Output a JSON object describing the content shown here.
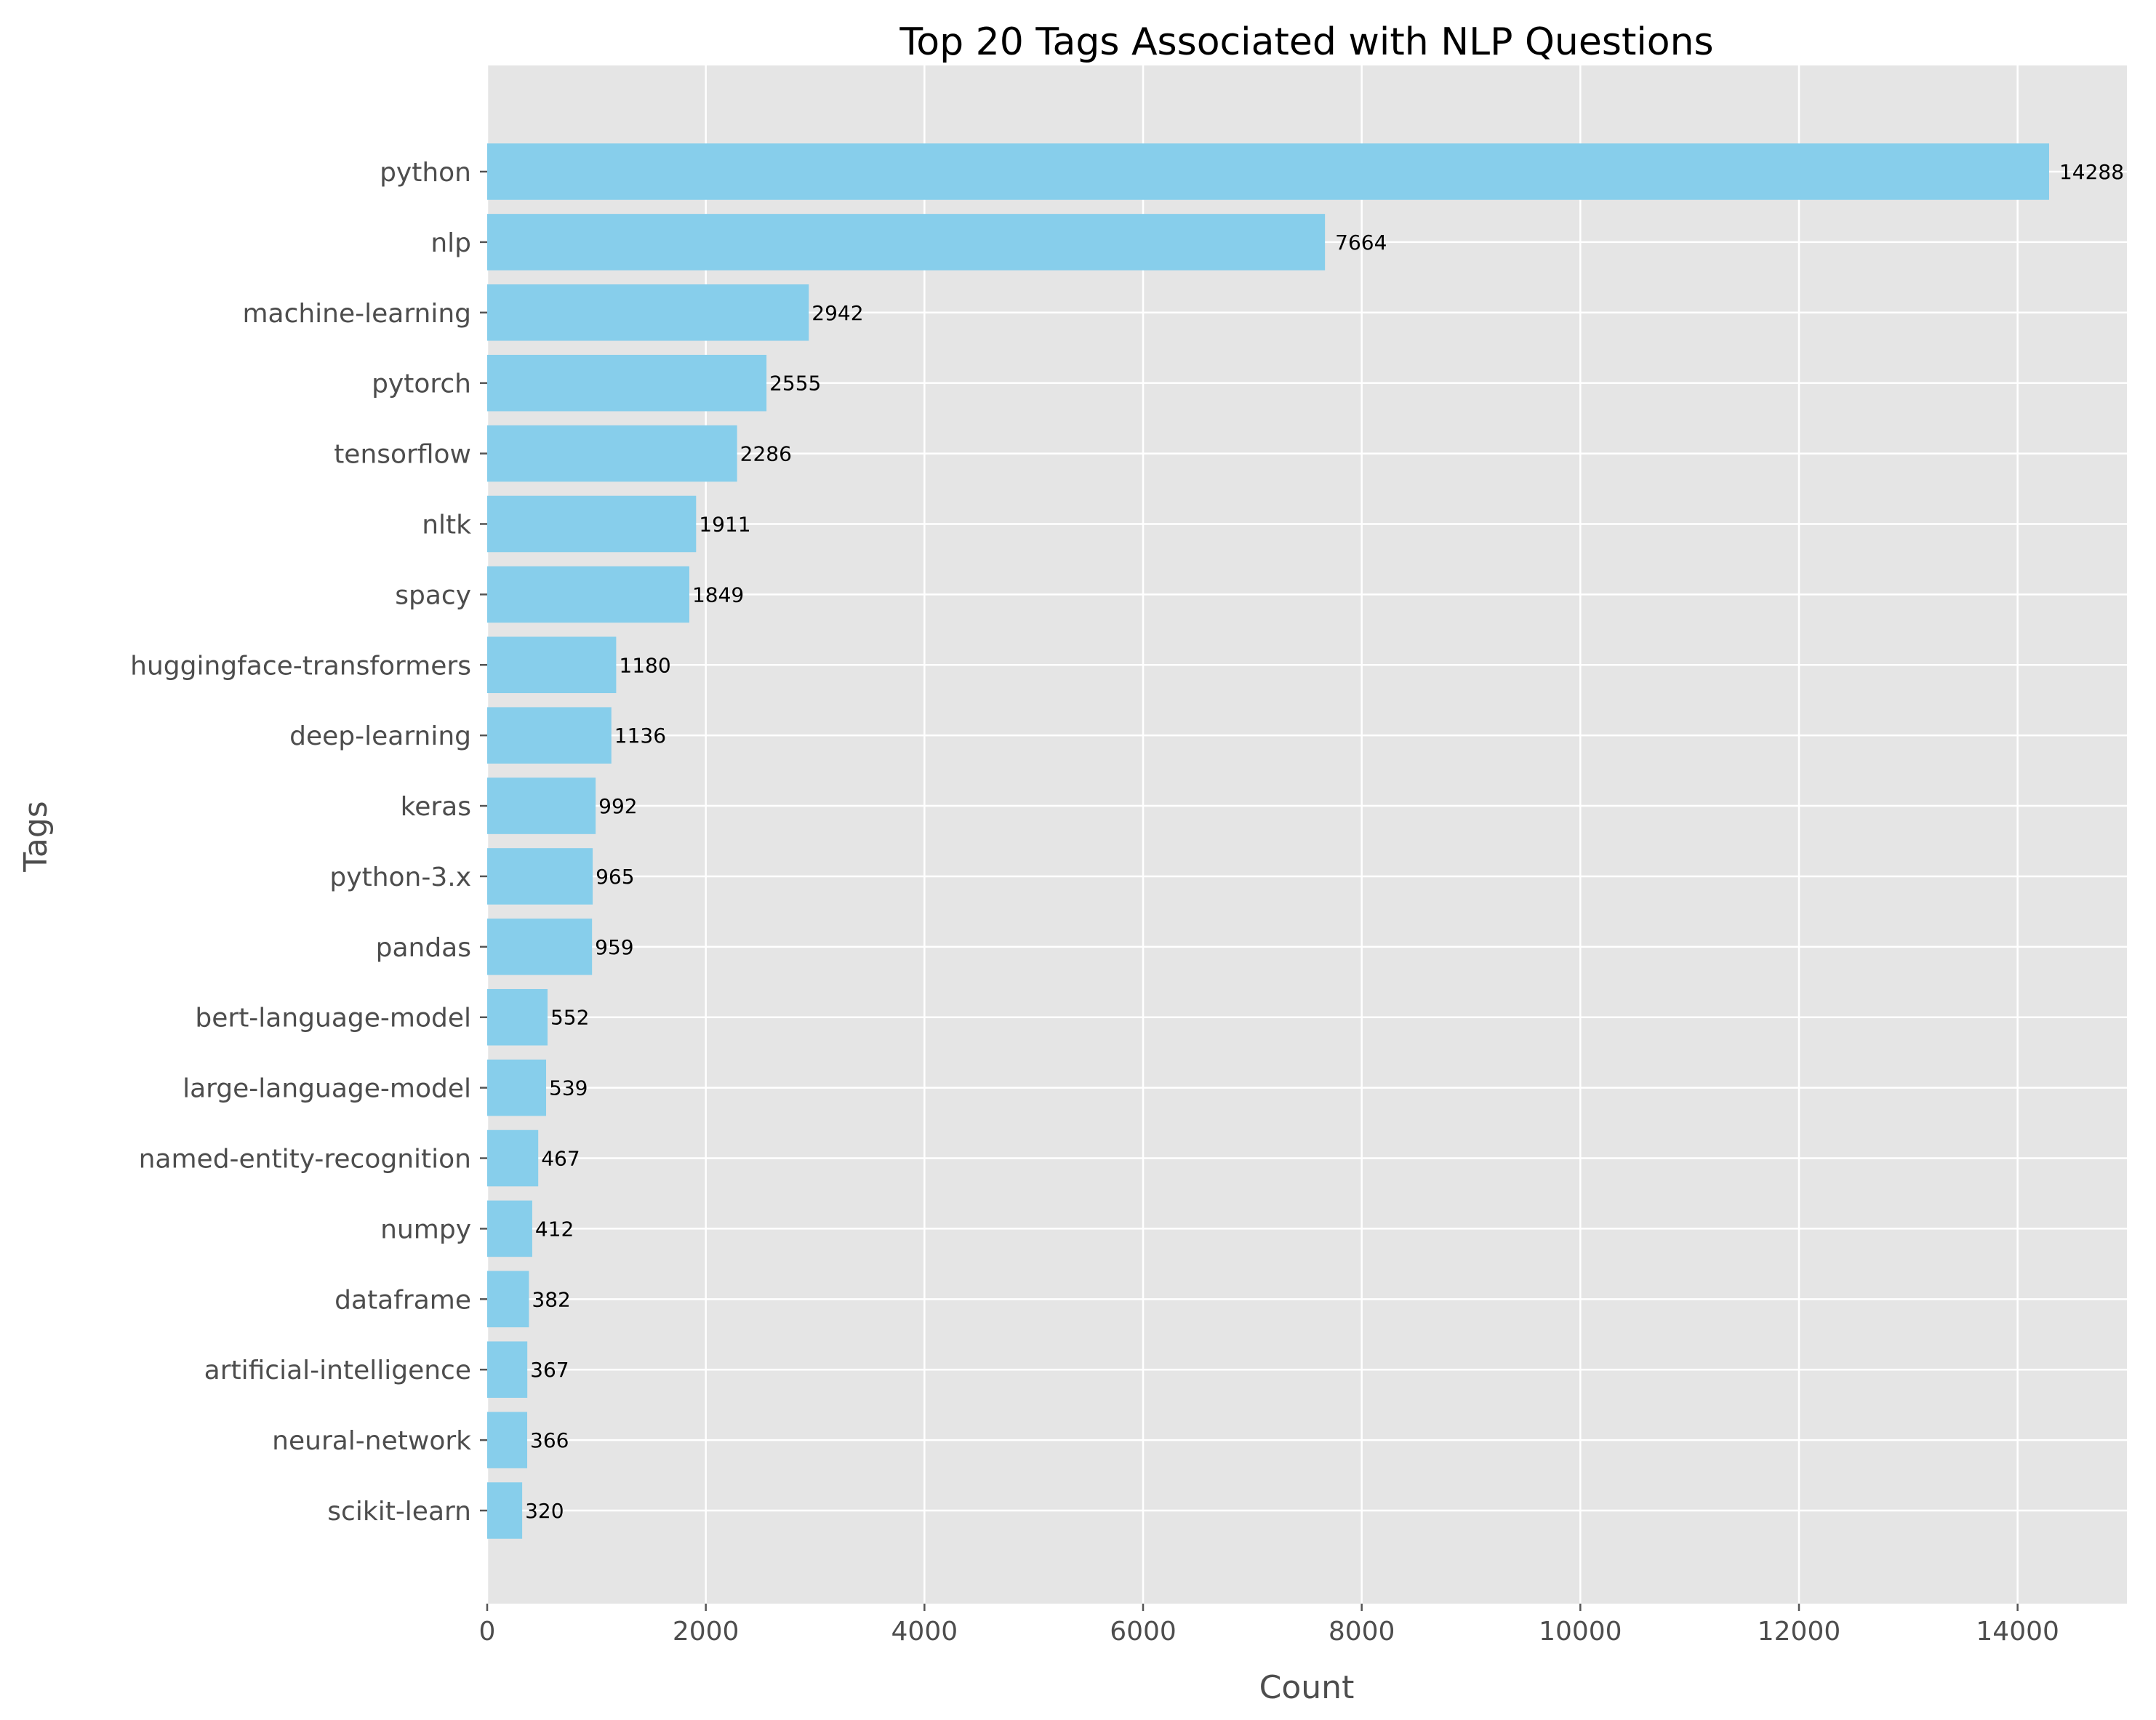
{
  "chart_data": {
    "type": "bar",
    "orientation": "horizontal",
    "title": "Top 20 Tags Associated with NLP Questions",
    "xlabel": "Count",
    "ylabel": "Tags",
    "xlim": [
      0,
      15000
    ],
    "xticks": [
      0,
      2000,
      4000,
      6000,
      8000,
      10000,
      12000,
      14000
    ],
    "grid": true,
    "bar_color": "#87ceeb",
    "background_color": "#e5e5e5",
    "categories": [
      "python",
      "nlp",
      "machine-learning",
      "pytorch",
      "tensorflow",
      "nltk",
      "spacy",
      "huggingface-transformers",
      "deep-learning",
      "keras",
      "python-3.x",
      "pandas",
      "bert-language-model",
      "large-language-model",
      "named-entity-recognition",
      "numpy",
      "dataframe",
      "artificial-intelligence",
      "neural-network",
      "scikit-learn"
    ],
    "values": [
      14288,
      7664,
      2942,
      2555,
      2286,
      1911,
      1849,
      1180,
      1136,
      992,
      965,
      959,
      552,
      539,
      467,
      412,
      382,
      367,
      366,
      320
    ]
  }
}
